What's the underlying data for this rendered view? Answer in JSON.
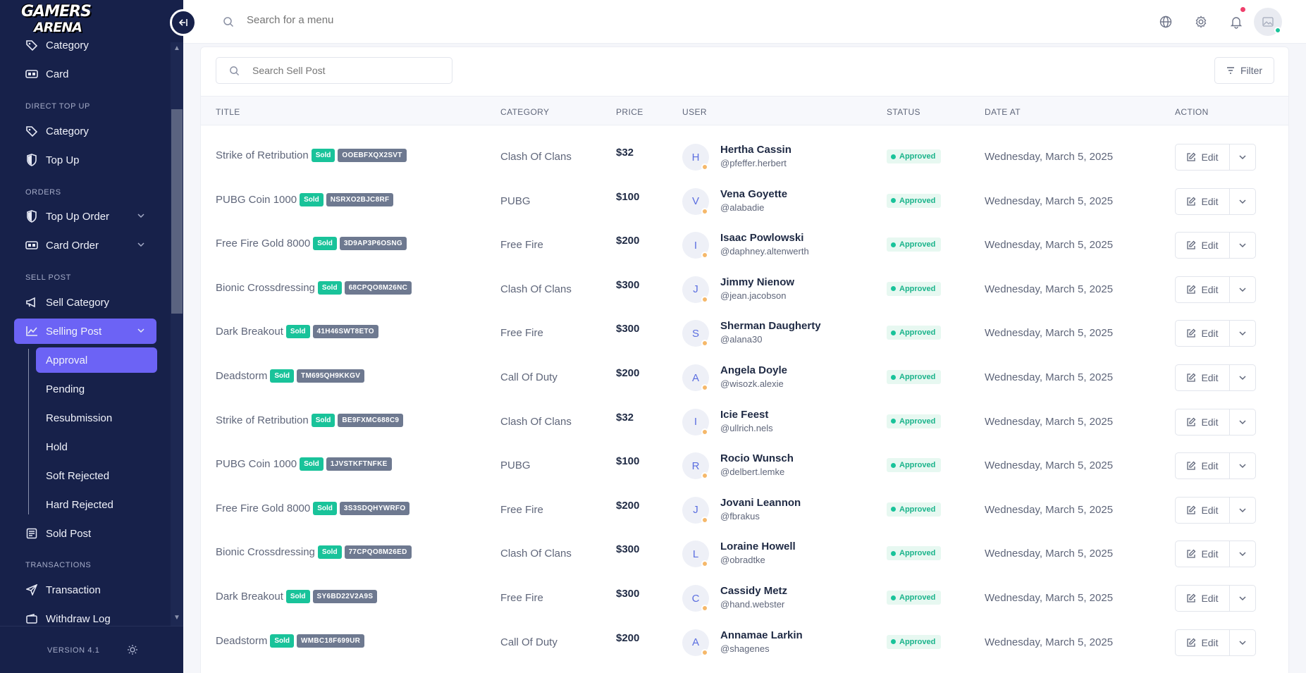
{
  "brand": {
    "logo_line1": "GAMERS",
    "logo_line2": "ARENA"
  },
  "sidebar": {
    "items": [
      {
        "label": "Category",
        "icon": "tag-icon"
      },
      {
        "label": "Card",
        "icon": "card-icon"
      },
      {
        "label": "Category",
        "icon": "tag-icon"
      },
      {
        "label": "Top Up",
        "icon": "shield-icon"
      },
      {
        "label": "Top Up Order",
        "icon": "shield-icon"
      },
      {
        "label": "Card Order",
        "icon": "card-icon"
      },
      {
        "label": "Sell Category",
        "icon": "megaphone-icon"
      },
      {
        "label": "Selling Post",
        "icon": "chart-icon"
      },
      {
        "label": "Sold Post",
        "icon": "newspaper-icon"
      },
      {
        "label": "Transaction",
        "icon": "send-icon"
      },
      {
        "label": "Withdraw Log",
        "icon": "wallet-icon"
      }
    ],
    "sections": [
      "DIRECT TOP UP",
      "ORDERS",
      "SELL POST",
      "TRANSACTIONS"
    ],
    "sub_items": [
      "Approval",
      "Pending",
      "Resubmission",
      "Hold",
      "Soft Rejected",
      "Hard Rejected"
    ],
    "version": "VERSION 4.1"
  },
  "header": {
    "search_placeholder": "Search for a menu"
  },
  "toolbar": {
    "search_placeholder": "Search Sell Post",
    "filter_label": "Filter"
  },
  "table": {
    "columns": [
      "TITLE",
      "CATEGORY",
      "PRICE",
      "USER",
      "STATUS",
      "DATE AT",
      "ACTION"
    ],
    "sold_label": "Sold",
    "edit_label": "Edit",
    "rows": [
      {
        "title": "Strike of Retribution",
        "code": "OOEBFXQX2SVT",
        "category": "Clash Of Clans",
        "price": "$32",
        "initial": "H",
        "name": "Hertha Cassin",
        "handle": "@pfeffer.herbert",
        "status": "Approved",
        "date": "Wednesday, March 5, 2025"
      },
      {
        "title": "PUBG Coin 1000",
        "code": "NSRXO2BJC8RF",
        "category": "PUBG",
        "price": "$100",
        "initial": "V",
        "name": "Vena Goyette",
        "handle": "@alabadie",
        "status": "Approved",
        "date": "Wednesday, March 5, 2025"
      },
      {
        "title": "Free Fire Gold 8000",
        "code": "3D9AP3P6OSNG",
        "category": "Free Fire",
        "price": "$200",
        "initial": "I",
        "name": "Isaac Powlowski",
        "handle": "@daphney.altenwerth",
        "status": "Approved",
        "date": "Wednesday, March 5, 2025"
      },
      {
        "title": "Bionic Crossdressing",
        "code": "68CPQO8M26NC",
        "category": "Clash Of Clans",
        "price": "$300",
        "initial": "J",
        "name": "Jimmy Nienow",
        "handle": "@jean.jacobson",
        "status": "Approved",
        "date": "Wednesday, March 5, 2025"
      },
      {
        "title": "Dark Breakout",
        "code": "41H46SWT8ETO",
        "category": "Free Fire",
        "price": "$300",
        "initial": "S",
        "name": "Sherman Daugherty",
        "handle": "@alana30",
        "status": "Approved",
        "date": "Wednesday, March 5, 2025"
      },
      {
        "title": "Deadstorm",
        "code": "TM695QH9KKGV",
        "category": "Call Of Duty",
        "price": "$200",
        "initial": "A",
        "name": "Angela Doyle",
        "handle": "@wisozk.alexie",
        "status": "Approved",
        "date": "Wednesday, March 5, 2025"
      },
      {
        "title": "Strike of Retribution",
        "code": "BE9FXMC688C9",
        "category": "Clash Of Clans",
        "price": "$32",
        "initial": "I",
        "name": "Icie Feest",
        "handle": "@ullrich.nels",
        "status": "Approved",
        "date": "Wednesday, March 5, 2025"
      },
      {
        "title": "PUBG Coin 1000",
        "code": "1JVSTKFTNFKE",
        "category": "PUBG",
        "price": "$100",
        "initial": "R",
        "name": "Rocio Wunsch",
        "handle": "@delbert.lemke",
        "status": "Approved",
        "date": "Wednesday, March 5, 2025"
      },
      {
        "title": "Free Fire Gold 8000",
        "code": "3S3SDQHYWRFO",
        "category": "Free Fire",
        "price": "$200",
        "initial": "J",
        "name": "Jovani Leannon",
        "handle": "@fbrakus",
        "status": "Approved",
        "date": "Wednesday, March 5, 2025"
      },
      {
        "title": "Bionic Crossdressing",
        "code": "77CPQO8M26ED",
        "category": "Clash Of Clans",
        "price": "$300",
        "initial": "L",
        "name": "Loraine Howell",
        "handle": "@obradtke",
        "status": "Approved",
        "date": "Wednesday, March 5, 2025"
      },
      {
        "title": "Dark Breakout",
        "code": "SY6BD22V2A9S",
        "category": "Free Fire",
        "price": "$300",
        "initial": "C",
        "name": "Cassidy Metz",
        "handle": "@hand.webster",
        "status": "Approved",
        "date": "Wednesday, March 5, 2025"
      },
      {
        "title": "Deadstorm",
        "code": "WMBC18F699UR",
        "category": "Call Of Duty",
        "price": "$200",
        "initial": "A",
        "name": "Annamae Larkin",
        "handle": "@shagenes",
        "status": "Approved",
        "date": "Wednesday, March 5, 2025"
      }
    ]
  }
}
